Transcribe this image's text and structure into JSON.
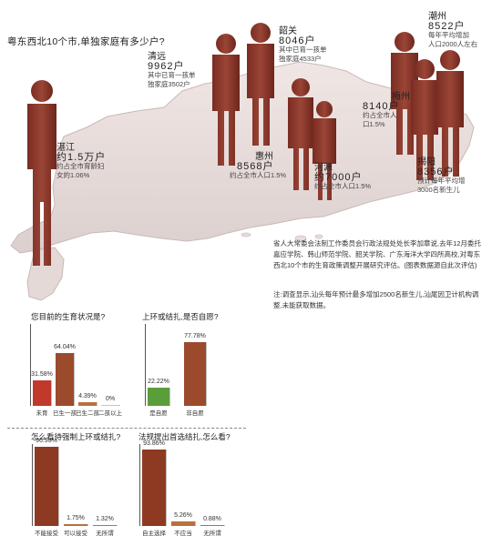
{
  "headline": "粤东西北10个市,单独家庭有多少户?",
  "cities": [
    {
      "id": "zhanjiang",
      "name": "湛江",
      "number": "约1.5万户",
      "desc": [
        "约占全市育龄妇",
        "女的1.06%"
      ]
    },
    {
      "id": "qingyuan",
      "name": "清远",
      "number": "9962户",
      "desc": [
        "其中已育一孩单",
        "独家庭3502户"
      ]
    },
    {
      "id": "shaoguan",
      "name": "韶关",
      "number": "8046户",
      "desc": [
        "其中已育一孩单",
        "独家庭4533户"
      ]
    },
    {
      "id": "chaozhou",
      "name": "潮州",
      "number": "8522户",
      "desc": [
        "每年平均增加",
        "人口2000人左右"
      ]
    },
    {
      "id": "meizhou",
      "name": "梅州",
      "number": "8140户",
      "desc": [
        "约占全市人",
        "口1.5%"
      ]
    },
    {
      "id": "huizhou",
      "name": "惠州",
      "number": "8568户",
      "desc": [
        "约占全市人口1.5%"
      ]
    },
    {
      "id": "heyuan",
      "name": "河源",
      "number": "约7000户",
      "desc": [
        "约占全市人口1.5%"
      ]
    },
    {
      "id": "jieyang",
      "name": "揭阳",
      "number": "8356户",
      "desc": [
        "预计每年平均增",
        "3000名新生儿"
      ]
    }
  ],
  "note": {
    "paragraph1": "省人大常委会法制工作委员会行政法规处处长李加章说,去年12月委托嘉应学院、韩山师范学院、韶关学院、广东海洋大学四所高校,对粤东西北10个市的生育政策调整开展研究评估。(图表数据源自此次评估)",
    "paragraph2": "注:调查显示,汕头每年预计最多增加2500名新生儿,汕尾因卫计机构调整,未能获取数据。"
  },
  "chart_data": [
    {
      "id": "fertility-status",
      "type": "bar",
      "title": "您目前的生育状况是?",
      "categories": [
        "未育",
        "已生一孩",
        "已生二孩",
        "二孩以上"
      ],
      "values": [
        31.58,
        64.04,
        4.39,
        0
      ],
      "value_labels": [
        "31.58%",
        "64.04%",
        "4.39%",
        "0%"
      ],
      "colors": [
        "#c0392b",
        "#9c4a2c",
        "#b8703e",
        "#d4c39a"
      ],
      "ylim": [
        0,
        100
      ]
    },
    {
      "id": "ring-voluntary",
      "type": "bar",
      "title": "上环或结扎,是否自愿?",
      "categories": [
        "是自愿",
        "非自愿"
      ],
      "values": [
        22.22,
        77.78
      ],
      "value_labels": [
        "22.22%",
        "77.78%"
      ],
      "colors": [
        "#5a9e3c",
        "#9c4a2c"
      ],
      "ylim": [
        0,
        100
      ]
    },
    {
      "id": "forced-view",
      "type": "bar",
      "title": "怎么看待强制上环或结扎?",
      "categories": [
        "不能接受",
        "可以接受",
        "无所谓"
      ],
      "values": [
        96.93,
        1.75,
        1.32
      ],
      "value_labels": [
        "96.93%",
        "1.75%",
        "1.32%"
      ],
      "colors": [
        "#8e3a22",
        "#b8703e",
        "#b8703e"
      ],
      "ylim": [
        0,
        100
      ]
    },
    {
      "id": "ligation-first",
      "type": "bar",
      "title": "法规提出首选结扎,怎么看?",
      "categories": [
        "自主选择",
        "不应当",
        "无所谓"
      ],
      "values": [
        93.86,
        5.26,
        0.88
      ],
      "value_labels": [
        "93.86%",
        "5.26%",
        "0.88%"
      ],
      "colors": [
        "#8e3a22",
        "#b8703e",
        "#b8703e"
      ],
      "ylim": [
        0,
        100
      ]
    }
  ]
}
